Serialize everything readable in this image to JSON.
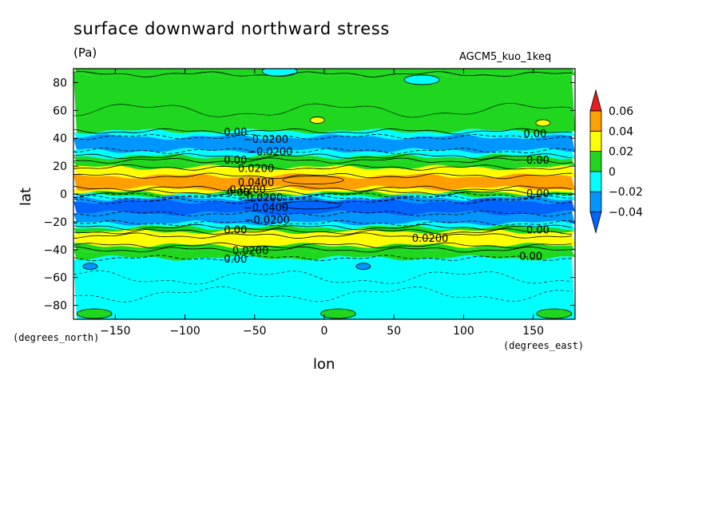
{
  "chart_data": {
    "type": "heatmap",
    "title": "surface downward northward stress",
    "units": "(Pa)",
    "run_label": "AGCM5_kuo_1keq",
    "xlabel": "lon",
    "ylabel": "lat",
    "x_unit_label": "(degrees_east)",
    "y_unit_label": "(degrees_north)",
    "xlim": [
      -180,
      180
    ],
    "ylim": [
      -90,
      90
    ],
    "x_ticks": [
      -150,
      -100,
      -50,
      0,
      50,
      100,
      150
    ],
    "y_ticks": [
      -80,
      -60,
      -40,
      -20,
      0,
      20,
      40,
      60,
      80
    ],
    "x_tick_labels": [
      "−150",
      "−100",
      "−50",
      "0",
      "50",
      "100",
      "150"
    ],
    "y_tick_labels": [
      "−80",
      "−60",
      "−40",
      "−20",
      "0",
      "20",
      "40",
      "60",
      "80"
    ],
    "colorbar": {
      "levels": [
        -0.04,
        -0.02,
        0,
        0.02,
        0.04,
        0.06
      ],
      "labels": [
        "−0.04",
        "−0.02",
        "0",
        "0.02",
        "0.04",
        "0.06"
      ],
      "colors": [
        "#0096ff",
        "#00ffff",
        "#1ed71e",
        "#ffff00",
        "#ffa000",
        "#e61e1e"
      ],
      "under_color": "#0064ff",
      "over_color": "#e61e1e"
    },
    "zonal_bands": [
      {
        "lat_from": 90,
        "lat_to": 86,
        "value": 0.01
      },
      {
        "lat_from": 86,
        "lat_to": 45,
        "value": 0.01
      },
      {
        "lat_from": 45,
        "lat_to": 41,
        "value": -0.01
      },
      {
        "lat_from": 41,
        "lat_to": 31,
        "value": -0.03
      },
      {
        "lat_from": 31,
        "lat_to": 27,
        "value": -0.01
      },
      {
        "lat_from": 27,
        "lat_to": 24,
        "value": 0.01
      },
      {
        "lat_from": 24,
        "lat_to": 19,
        "value": 0.01
      },
      {
        "lat_from": 19,
        "lat_to": 13,
        "value": 0.03
      },
      {
        "lat_from": 13,
        "lat_to": 4,
        "value": 0.045
      },
      {
        "lat_from": 4,
        "lat_to": 1,
        "value": 0.03
      },
      {
        "lat_from": 1,
        "lat_to": -1,
        "value": 0.01
      },
      {
        "lat_from": -1,
        "lat_to": -3,
        "value": -0.01
      },
      {
        "lat_from": -3,
        "lat_to": -5,
        "value": -0.03
      },
      {
        "lat_from": -5,
        "lat_to": -14,
        "value": -0.045
      },
      {
        "lat_from": -14,
        "lat_to": -21,
        "value": -0.03
      },
      {
        "lat_from": -21,
        "lat_to": -24,
        "value": -0.01
      },
      {
        "lat_from": -24,
        "lat_to": -27,
        "value": 0.01
      },
      {
        "lat_from": -27,
        "lat_to": -30,
        "value": 0.03
      },
      {
        "lat_from": -30,
        "lat_to": -37,
        "value": 0.03
      },
      {
        "lat_from": -37,
        "lat_to": -40,
        "value": 0.01
      },
      {
        "lat_from": -40,
        "lat_to": -46,
        "value": 0.01
      },
      {
        "lat_from": -46,
        "lat_to": -90,
        "value": -0.01
      }
    ],
    "features": [
      {
        "lon": -32,
        "lat": 88,
        "value": -0.01
      },
      {
        "lon": 70,
        "lat": 82,
        "value": -0.01
      },
      {
        "lon": -8,
        "lat": 10,
        "value": 0.05
      },
      {
        "lon": -10,
        "lat": -8,
        "value": -0.05
      },
      {
        "lon": -168,
        "lat": -52,
        "value": -0.03
      },
      {
        "lon": 28,
        "lat": -52,
        "value": -0.03
      },
      {
        "lon": -5,
        "lat": 53,
        "value": 0.03
      },
      {
        "lon": 157,
        "lat": 51,
        "value": 0.03
      },
      {
        "lon": -165,
        "lat": -86,
        "value": 0.01
      },
      {
        "lon": 10,
        "lat": -86,
        "value": 0.01
      },
      {
        "lon": 165,
        "lat": -86,
        "value": 0.01
      }
    ],
    "contour_labels": [
      {
        "lon": -72,
        "lat": 44,
        "text": "0.00"
      },
      {
        "lon": -58,
        "lat": 39,
        "text": "−0.0200"
      },
      {
        "lon": -55,
        "lat": 30,
        "text": "−0.0200"
      },
      {
        "lon": -72,
        "lat": 24,
        "text": "0.00"
      },
      {
        "lon": -62,
        "lat": 18,
        "text": "0.0200"
      },
      {
        "lon": -62,
        "lat": 8,
        "text": "0.0400"
      },
      {
        "lon": -68,
        "lat": 3,
        "text": "0.0200"
      },
      {
        "lon": -70,
        "lat": 1,
        "text": "0.00"
      },
      {
        "lon": -62,
        "lat": -3,
        "text": "−0.0200"
      },
      {
        "lon": -58,
        "lat": -10,
        "text": "−0.0400"
      },
      {
        "lon": -57,
        "lat": -19,
        "text": "−0.0200"
      },
      {
        "lon": -72,
        "lat": -26,
        "text": "0.00"
      },
      {
        "lon": 63,
        "lat": -32,
        "text": "0.0200"
      },
      {
        "lon": -66,
        "lat": -41,
        "text": "0.0200"
      },
      {
        "lon": -72,
        "lat": -47,
        "text": "0.00"
      },
      {
        "lon": 143,
        "lat": 43,
        "text": "0.00"
      },
      {
        "lon": 145,
        "lat": 24,
        "text": "0.00"
      },
      {
        "lon": 145,
        "lat": 0,
        "text": "0.00"
      },
      {
        "lon": 145,
        "lat": -26,
        "text": "0.00"
      },
      {
        "lon": 140,
        "lat": -45,
        "text": "0.00"
      }
    ]
  }
}
